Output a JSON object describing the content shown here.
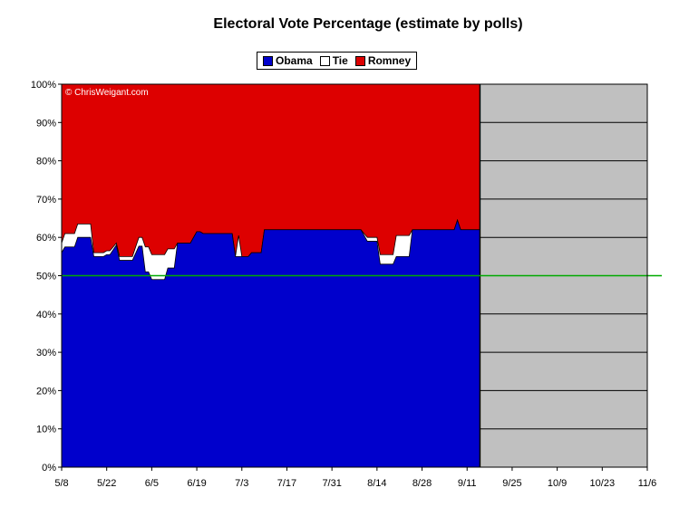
{
  "chart_data": {
    "type": "area",
    "title": "Electoral Vote Percentage (estimate by polls)",
    "legend": [
      {
        "name": "Obama",
        "color": "#0000cc"
      },
      {
        "name": "Tie",
        "color": "#ffffff"
      },
      {
        "name": "Romney",
        "color": "#dd0000"
      }
    ],
    "legend_position": "top-center",
    "copyright": "© ChrisWeigant.com",
    "y_ticks": [
      "0%",
      "10%",
      "20%",
      "30%",
      "40%",
      "50%",
      "60%",
      "70%",
      "80%",
      "90%",
      "100%"
    ],
    "ylim": [
      0,
      100
    ],
    "x_ticks": [
      "5/8",
      "5/22",
      "6/5",
      "6/19",
      "7/3",
      "7/17",
      "7/31",
      "8/14",
      "8/28",
      "9/11",
      "9/25",
      "10/9",
      "10/23",
      "11/6"
    ],
    "x_start": "5/8",
    "x_end": "11/6",
    "reference_line": {
      "value": 50,
      "color": "#00aa00"
    },
    "future_fill_color": "#c0c0c0",
    "series": [
      {
        "name": "Obama",
        "points": [
          [
            "5/8",
            56
          ],
          [
            "5/9",
            57.5
          ],
          [
            "5/12",
            57.5
          ],
          [
            "5/13",
            60
          ],
          [
            "5/17",
            60
          ],
          [
            "5/18",
            55
          ],
          [
            "5/21",
            55
          ],
          [
            "5/22",
            55.5
          ],
          [
            "5/23",
            55.5
          ],
          [
            "5/25",
            58
          ],
          [
            "5/26",
            54
          ],
          [
            "5/30",
            54
          ],
          [
            "6/1",
            57.7
          ],
          [
            "6/2",
            57.7
          ],
          [
            "6/3",
            51
          ],
          [
            "6/4",
            51
          ],
          [
            "6/5",
            49
          ],
          [
            "6/9",
            49
          ],
          [
            "6/10",
            52
          ],
          [
            "6/12",
            52
          ],
          [
            "6/13",
            58.5
          ],
          [
            "6/17",
            58.5
          ],
          [
            "6/19",
            61.5
          ],
          [
            "6/20",
            61.5
          ],
          [
            "6/21",
            61
          ],
          [
            "6/30",
            61
          ],
          [
            "7/1",
            55
          ],
          [
            "7/5",
            55
          ],
          [
            "7/6",
            56
          ],
          [
            "7/9",
            56
          ],
          [
            "7/10",
            62
          ],
          [
            "7/26",
            62
          ],
          [
            "7/29",
            62
          ],
          [
            "8/9",
            62
          ],
          [
            "8/10",
            60.5
          ],
          [
            "8/11",
            59
          ],
          [
            "8/14",
            59
          ],
          [
            "8/15",
            53
          ],
          [
            "8/19",
            53
          ],
          [
            "8/20",
            55
          ],
          [
            "8/24",
            55
          ],
          [
            "8/25",
            62
          ],
          [
            "9/1",
            62
          ],
          [
            "9/7",
            62
          ],
          [
            "9/8",
            64.5
          ],
          [
            "9/9",
            62
          ],
          [
            "9/12",
            62
          ],
          [
            "9/15",
            62
          ]
        ]
      },
      {
        "name": "Tie",
        "points": [
          [
            "5/8",
            58.5
          ],
          [
            "5/9",
            61
          ],
          [
            "5/12",
            61
          ],
          [
            "5/13",
            63.5
          ],
          [
            "5/17",
            63.5
          ],
          [
            "5/18",
            56
          ],
          [
            "5/21",
            56
          ],
          [
            "5/22",
            56.5
          ],
          [
            "5/23",
            56.5
          ],
          [
            "5/25",
            58.5
          ],
          [
            "5/26",
            55
          ],
          [
            "5/30",
            55
          ],
          [
            "6/1",
            60
          ],
          [
            "6/2",
            60
          ],
          [
            "6/3",
            57.5
          ],
          [
            "6/4",
            57.5
          ],
          [
            "6/5",
            55.5
          ],
          [
            "6/9",
            55.5
          ],
          [
            "6/10",
            57
          ],
          [
            "6/12",
            57
          ],
          [
            "6/13",
            58.5
          ],
          [
            "6/17",
            58.5
          ],
          [
            "6/19",
            61.5
          ],
          [
            "6/20",
            61.5
          ],
          [
            "6/21",
            61
          ],
          [
            "6/30",
            61
          ],
          [
            "7/1",
            55
          ],
          [
            "7/2",
            60.5
          ],
          [
            "7/3",
            55
          ],
          [
            "7/5",
            55
          ],
          [
            "7/6",
            56
          ],
          [
            "7/9",
            56
          ],
          [
            "7/10",
            62
          ],
          [
            "7/26",
            62
          ],
          [
            "7/29",
            62
          ],
          [
            "8/9",
            62
          ],
          [
            "8/10",
            61
          ],
          [
            "8/11",
            60
          ],
          [
            "8/14",
            60
          ],
          [
            "8/15",
            55.5
          ],
          [
            "8/19",
            55.5
          ],
          [
            "8/20",
            60.5
          ],
          [
            "8/24",
            60.5
          ],
          [
            "8/25",
            62
          ],
          [
            "9/1",
            62
          ],
          [
            "9/7",
            62
          ],
          [
            "9/8",
            64.5
          ],
          [
            "9/9",
            62
          ],
          [
            "9/12",
            62
          ],
          [
            "9/15",
            62
          ]
        ]
      },
      {
        "name": "Romney",
        "points": [
          [
            "5/8",
            100
          ],
          [
            "9/15",
            100
          ]
        ]
      }
    ]
  }
}
